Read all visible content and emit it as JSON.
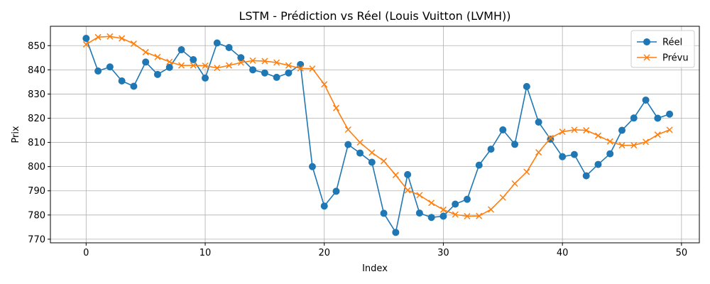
{
  "chart_data": {
    "type": "line",
    "title": "LSTM - Prédiction vs Réel (Louis Vuitton (LVMH))",
    "xlabel": "Index",
    "ylabel": "Prix",
    "xlim": [
      -3,
      51.5
    ],
    "ylim": [
      768.5,
      858
    ],
    "x_ticks": [
      0,
      10,
      20,
      30,
      40,
      50
    ],
    "y_ticks": [
      770,
      780,
      790,
      800,
      810,
      820,
      830,
      840,
      850
    ],
    "grid": true,
    "legend_position": "top-right",
    "series": [
      {
        "name": "Réel",
        "color": "#1f77b4",
        "marker": "circle",
        "x": [
          0,
          1,
          2,
          3,
          4,
          5,
          6,
          7,
          8,
          9,
          10,
          11,
          12,
          13,
          14,
          15,
          16,
          17,
          18,
          19,
          20,
          21,
          22,
          23,
          24,
          25,
          26,
          27,
          28,
          29,
          30,
          31,
          32,
          33,
          34,
          35,
          36,
          37,
          38,
          39,
          40,
          41,
          42,
          43,
          44,
          45,
          46,
          47,
          48,
          49
        ],
        "values": [
          853,
          839.5,
          841.2,
          835.4,
          833.2,
          843.2,
          838.1,
          841,
          848.3,
          844.2,
          836.6,
          851.1,
          849.2,
          845,
          840,
          838.7,
          836.9,
          838.7,
          842.2,
          800,
          783.7,
          789.8,
          809.1,
          805.6,
          801.8,
          780.7,
          772.8,
          796.7,
          780.8,
          779,
          779.5,
          784.5,
          786.5,
          800.6,
          807.2,
          815.2,
          809.2,
          833.1,
          818.4,
          811.3,
          804.1,
          805,
          796.2,
          800.9,
          805.3,
          815,
          820.1,
          827.5,
          820,
          821.7
        ]
      },
      {
        "name": "Prévu",
        "color": "#ff7f0e",
        "marker": "x",
        "x": [
          0,
          1,
          2,
          3,
          4,
          5,
          6,
          7,
          8,
          9,
          10,
          11,
          12,
          13,
          14,
          15,
          16,
          17,
          18,
          19,
          20,
          21,
          22,
          23,
          24,
          25,
          26,
          27,
          28,
          29,
          30,
          31,
          32,
          33,
          34,
          35,
          36,
          37,
          38,
          39,
          40,
          41,
          42,
          43,
          44,
          45,
          46,
          47,
          48,
          49
        ],
        "values": [
          850.5,
          853.5,
          853.8,
          853,
          850.8,
          847.3,
          845.3,
          843.3,
          841.8,
          841.8,
          841.7,
          840.8,
          841.8,
          843,
          843.8,
          843.6,
          843,
          841.8,
          840.6,
          840.5,
          834,
          824.2,
          815.3,
          810,
          805.8,
          802.3,
          796.5,
          790.2,
          788.2,
          785,
          782.2,
          780.2,
          779.5,
          779.6,
          782.3,
          787.2,
          793,
          797.8,
          805.9,
          811.8,
          814.4,
          815.2,
          815,
          812.8,
          810.4,
          808.8,
          808.8,
          810.2,
          813.2,
          815.2
        ]
      }
    ]
  }
}
